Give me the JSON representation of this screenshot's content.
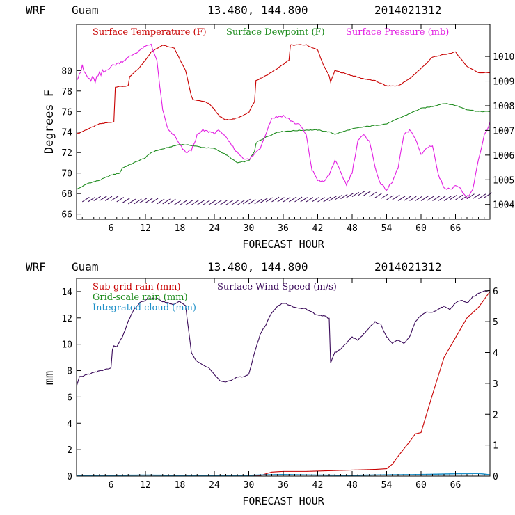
{
  "colors": {
    "red": "#c80000",
    "green": "#1e8c1e",
    "magenta": "#e21fe2",
    "purple": "#3a0a5a",
    "blue": "#1e90c8",
    "axis": "#000000"
  },
  "chart_data": [
    {
      "id": "top",
      "type": "line",
      "header": {
        "model": "WRF",
        "location": "Guam",
        "coords": "13.480, 144.800",
        "init": "2014021312"
      },
      "xlabel": "FORECAST HOUR",
      "ylabel": "Degrees F",
      "xlim": [
        0,
        72
      ],
      "ylim": [
        65.5,
        84.5
      ],
      "y2lim": [
        1003.4,
        1011.3
      ],
      "xticks": [
        6,
        12,
        18,
        24,
        30,
        36,
        42,
        48,
        54,
        60,
        66
      ],
      "yticks": [
        66,
        68,
        70,
        72,
        74,
        76,
        78,
        80
      ],
      "y2ticks": [
        1004,
        1005,
        1006,
        1007,
        1008,
        1009,
        1010
      ],
      "legend": [
        "Surface Temperature (F)",
        "Surface Dewpoint (F)",
        "Surface Pressure (mb)"
      ],
      "series": [
        {
          "name": "Surface Temperature (F)",
          "color": "red",
          "axis": "left",
          "x": [
            0,
            2,
            4,
            6.5,
            6.6,
            9,
            9.1,
            11,
            13,
            15,
            17,
            19,
            20,
            20.2,
            22,
            23,
            24,
            25,
            26,
            27,
            28,
            29,
            30,
            31,
            31.2,
            33,
            35,
            37,
            37.2,
            40,
            42,
            43,
            44,
            44.2,
            45,
            48,
            50,
            52,
            54,
            56,
            58,
            60,
            62,
            66,
            68,
            70,
            72
          ],
          "y": [
            73.8,
            74.3,
            74.8,
            75.0,
            78.4,
            78.5,
            79.3,
            80.3,
            81.8,
            82.5,
            82.2,
            80.0,
            77.5,
            77.2,
            77.0,
            76.8,
            76.2,
            75.5,
            75.2,
            75.2,
            75.4,
            75.6,
            75.9,
            77.0,
            79.0,
            79.5,
            80.2,
            81.0,
            82.5,
            82.5,
            82.0,
            80.5,
            79.5,
            78.8,
            80.0,
            79.5,
            79.2,
            79.0,
            78.5,
            78.5,
            79.2,
            80.2,
            81.3,
            81.8,
            80.4,
            79.8,
            79.8
          ]
        },
        {
          "name": "Surface Dewpoint (F)",
          "color": "green",
          "axis": "left",
          "x": [
            0,
            2,
            4,
            6,
            7.5,
            8,
            10,
            12,
            13,
            14,
            16,
            18,
            20,
            22,
            24,
            26,
            28,
            30,
            31,
            31.3,
            33,
            35,
            37,
            40,
            42,
            44,
            45,
            48,
            50,
            54,
            56,
            58,
            60,
            62,
            64,
            66,
            68,
            70,
            72
          ],
          "y": [
            68.4,
            69.0,
            69.3,
            69.8,
            70.0,
            70.5,
            71.0,
            71.5,
            72.0,
            72.2,
            72.5,
            72.8,
            72.7,
            72.5,
            72.4,
            71.8,
            71.0,
            71.2,
            72.1,
            73.0,
            73.5,
            74.0,
            74.1,
            74.2,
            74.2,
            74.0,
            73.8,
            74.3,
            74.5,
            74.8,
            75.3,
            75.8,
            76.3,
            76.5,
            76.8,
            76.6,
            76.2,
            76.0,
            76.0
          ]
        },
        {
          "name": "Surface Pressure (mb)",
          "color": "magenta",
          "axis": "right",
          "x": [
            0,
            1,
            2,
            3,
            4,
            6,
            8,
            10,
            12,
            13,
            14,
            15,
            16,
            17,
            18,
            19,
            20,
            21,
            22,
            24,
            25,
            26,
            27,
            28,
            29,
            30,
            32,
            34,
            36,
            38,
            39,
            40,
            41,
            42,
            43,
            44,
            45,
            46,
            47,
            48,
            49,
            50,
            51,
            52,
            53,
            54,
            55,
            56,
            57,
            58,
            59,
            60,
            61,
            62,
            63,
            64,
            65,
            66,
            67,
            68,
            69,
            70,
            71,
            72
          ],
          "y": [
            1009.2,
            1009.5,
            1009.1,
            1009.0,
            1009.2,
            1009.6,
            1009.8,
            1010.1,
            1010.4,
            1010.5,
            1009.8,
            1007.8,
            1007.0,
            1006.8,
            1006.4,
            1006.1,
            1006.2,
            1006.8,
            1007.0,
            1006.9,
            1007.0,
            1006.7,
            1006.4,
            1006.1,
            1005.9,
            1005.8,
            1006.3,
            1007.5,
            1007.6,
            1007.3,
            1007.2,
            1006.8,
            1005.4,
            1005.0,
            1004.9,
            1005.2,
            1005.8,
            1005.3,
            1004.8,
            1005.3,
            1006.6,
            1006.8,
            1006.6,
            1005.5,
            1004.8,
            1004.6,
            1004.9,
            1005.5,
            1006.8,
            1007.0,
            1006.7,
            1006.0,
            1006.3,
            1006.4,
            1005.2,
            1004.7,
            1004.6,
            1004.8,
            1004.6,
            1004.2,
            1004.6,
            1005.8,
            1006.8,
            1007.3
          ]
        },
        {
          "name": "Surface Wind (barbs)",
          "color": "purple",
          "axis": "left",
          "kind": "barbs",
          "x": [
            1,
            2,
            3,
            4,
            5,
            6,
            7,
            8,
            9,
            10,
            11,
            12,
            13,
            14,
            15,
            16,
            17,
            18,
            19,
            20,
            21,
            22,
            23,
            24,
            25,
            26,
            27,
            28,
            29,
            30,
            31,
            32,
            33,
            34,
            35,
            36,
            37,
            38,
            39,
            40,
            41,
            42,
            43,
            44,
            45,
            46,
            47,
            48,
            49,
            50,
            51,
            52,
            53,
            54,
            55,
            56,
            57,
            58,
            59,
            60,
            61,
            62,
            63,
            64,
            65,
            66,
            67,
            68,
            69,
            70,
            71
          ],
          "y": [
            67.2,
            67.2,
            67.3,
            67.3,
            67.3,
            67.3,
            67.2,
            67.1,
            67.0,
            67.0,
            67.1,
            67.1,
            67.1,
            67.0,
            67.0,
            67.0,
            66.9,
            66.9,
            66.9,
            66.9,
            66.9,
            66.9,
            66.9,
            66.9,
            66.9,
            66.9,
            66.9,
            66.9,
            67.0,
            67.0,
            67.0,
            67.1,
            67.2,
            67.2,
            67.2,
            67.2,
            67.2,
            67.2,
            67.2,
            67.2,
            67.2,
            67.2,
            67.2,
            67.3,
            67.4,
            67.5,
            67.6,
            67.7,
            67.8,
            67.8,
            67.7,
            67.6,
            67.5,
            67.4,
            67.4,
            67.3,
            67.3,
            67.3,
            67.3,
            67.3,
            67.3,
            67.3,
            67.3,
            67.3,
            67.4,
            67.4,
            67.4,
            67.5,
            67.5,
            67.5,
            67.6
          ]
        }
      ]
    },
    {
      "id": "bottom",
      "type": "line",
      "header": {
        "model": "WRF",
        "location": "Guam",
        "coords": "13.480, 144.800",
        "init": "2014021312"
      },
      "xlabel": "FORECAST HOUR",
      "ylabel": "mm",
      "xlim": [
        0,
        72
      ],
      "ylim": [
        0,
        15
      ],
      "y2lim": [
        0,
        6.4
      ],
      "xticks": [
        6,
        12,
        18,
        24,
        30,
        36,
        42,
        48,
        54,
        60,
        66
      ],
      "yticks": [
        0,
        2,
        4,
        6,
        8,
        10,
        12,
        14
      ],
      "y2ticks": [
        0,
        1,
        2,
        3,
        4,
        5,
        6
      ],
      "legend": [
        "Sub-grid rain (mm)",
        "Grid-scale rain (mm)",
        "Integrated cloud (mm)",
        "Surface Wind Speed (m/s)"
      ],
      "series": [
        {
          "name": "Sub-grid rain (mm)",
          "color": "red",
          "axis": "left",
          "x": [
            0,
            30,
            32,
            34,
            36,
            40,
            44,
            48,
            52,
            54,
            55,
            56,
            58,
            59,
            60,
            62,
            64,
            66,
            68,
            70,
            72
          ],
          "y": [
            0,
            0,
            0.05,
            0.3,
            0.35,
            0.35,
            0.4,
            0.45,
            0.5,
            0.55,
            0.9,
            1.5,
            2.6,
            3.2,
            3.3,
            6.2,
            9.0,
            10.5,
            12.0,
            12.8,
            14.0
          ]
        },
        {
          "name": "Grid-scale rain (mm)",
          "color": "green",
          "axis": "left",
          "x": [
            0,
            72
          ],
          "y": [
            0,
            0
          ]
        },
        {
          "name": "Integrated cloud (mm)",
          "color": "blue",
          "axis": "left",
          "x": [
            0,
            6,
            12,
            18,
            24,
            30,
            33,
            36,
            42,
            48,
            54,
            60,
            66,
            70,
            72
          ],
          "y": [
            0.05,
            0.06,
            0.08,
            0.06,
            0.05,
            0.06,
            0.1,
            0.12,
            0.08,
            0.06,
            0.1,
            0.12,
            0.18,
            0.2,
            0.1
          ]
        },
        {
          "name": "Surface Wind Speed (m/s)",
          "color": "purple",
          "axis": "right",
          "x": [
            0,
            0.5,
            2,
            4,
            6,
            6.3,
            7,
            8,
            9,
            10,
            11,
            12,
            13,
            14,
            15,
            16,
            17,
            18,
            19,
            20,
            21,
            22,
            23,
            24,
            25,
            26,
            27,
            28,
            29,
            30,
            31,
            32,
            33,
            34,
            35,
            36,
            37,
            38,
            39,
            40,
            41,
            42,
            43,
            44,
            44.1,
            45,
            46,
            47,
            48,
            49,
            50,
            51,
            52,
            53,
            54,
            55,
            56,
            57,
            58,
            59,
            60,
            61,
            62,
            63,
            64,
            65,
            66,
            67,
            68,
            69,
            70,
            71,
            72
          ],
          "y": [
            2.9,
            3.2,
            3.3,
            3.4,
            3.5,
            4.2,
            4.2,
            4.5,
            5.0,
            5.4,
            5.6,
            5.7,
            5.75,
            5.75,
            5.65,
            5.6,
            5.55,
            5.65,
            5.5,
            4.0,
            3.7,
            3.6,
            3.5,
            3.3,
            3.1,
            3.05,
            3.1,
            3.2,
            3.2,
            3.3,
            4.0,
            4.6,
            4.9,
            5.3,
            5.5,
            5.6,
            5.55,
            5.45,
            5.45,
            5.4,
            5.3,
            5.2,
            5.2,
            5.1,
            3.6,
            4.0,
            4.1,
            4.3,
            4.5,
            4.4,
            4.6,
            4.8,
            5.0,
            4.9,
            4.5,
            4.3,
            4.4,
            4.3,
            4.5,
            5.0,
            5.2,
            5.3,
            5.3,
            5.4,
            5.5,
            5.4,
            5.6,
            5.7,
            5.6,
            5.8,
            5.9,
            6.0,
            6.0
          ]
        }
      ]
    }
  ]
}
